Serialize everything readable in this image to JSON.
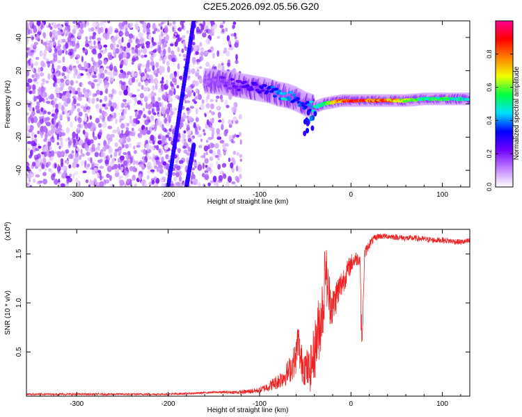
{
  "title": "C2E5.2026.092.05.56.G20",
  "colors": {
    "snr_line": "#ee2222",
    "axis": "#000000"
  },
  "chart_data": [
    {
      "type": "heatmap",
      "xlabel": "Height of straight line (km)",
      "ylabel": "Frequency (Hz)",
      "xlim": [
        -355,
        130
      ],
      "ylim": [
        -50,
        50
      ],
      "x_ticks": [
        "-300",
        "-200",
        "-100",
        "0",
        "100"
      ],
      "x_tick_values": [
        -300,
        -200,
        -100,
        0,
        100
      ],
      "y_ticks": [
        "-40",
        "-20",
        "0",
        "20",
        "40"
      ],
      "y_tick_values": [
        -40,
        -20,
        0,
        20,
        40
      ],
      "colorbar": {
        "label": "Normalized spectral amplitude",
        "range": [
          0,
          1
        ],
        "ticks": [
          "0.0",
          "0.2",
          "0.4",
          "0.6",
          "0.8"
        ],
        "tick_values": [
          0.0,
          0.2,
          0.4,
          0.6,
          0.8
        ],
        "colormap": [
          "#ffffff",
          "#c080ff",
          "#7000ff",
          "#0000ff",
          "#00e0ff",
          "#00ff40",
          "#f0ff00",
          "#ff8000",
          "#ff0000",
          "#ff0090"
        ]
      },
      "ridge": {
        "x": [
          -160,
          -140,
          -120,
          -100,
          -90,
          -80,
          -70,
          -60,
          -50,
          -40,
          -30,
          -20,
          -10,
          0,
          20,
          40,
          60,
          80,
          100,
          130
        ],
        "y": [
          14,
          13,
          11,
          9,
          8,
          6,
          5,
          3,
          0,
          -2,
          0,
          1,
          2,
          2,
          2,
          2,
          2,
          3,
          3,
          3
        ],
        "amplitude": [
          0.15,
          0.2,
          0.25,
          0.3,
          0.35,
          0.45,
          0.5,
          0.4,
          0.35,
          0.5,
          0.6,
          0.7,
          0.85,
          0.9,
          0.92,
          0.85,
          0.7,
          0.55,
          0.6,
          0.5
        ]
      },
      "diagonal_streaks": [
        {
          "x_start": -200,
          "x_end": -172,
          "y_start": -50,
          "y_end": 50
        },
        {
          "x_start": -180,
          "x_end": -172,
          "y_start": -50,
          "y_end": -25
        }
      ]
    },
    {
      "type": "line",
      "xlabel": "Height of straight line (km)",
      "ylabel": "SNR (10 * v/v)",
      "y_multiplier_label": "(x10",
      "y_multiplier_exp": "4",
      "xlim": [
        -355,
        130
      ],
      "ylim": [
        0.05,
        1.75
      ],
      "x_ticks": [
        "-300",
        "-200",
        "-100",
        "0",
        "100"
      ],
      "x_tick_values": [
        -300,
        -200,
        -100,
        0,
        100
      ],
      "y_ticks": [
        "0.5",
        "1.0",
        "1.5"
      ],
      "y_tick_values": [
        0.5,
        1.0,
        1.5
      ],
      "series": [
        {
          "x": [
            -355,
            -300,
            -250,
            -200,
            -170,
            -150,
            -120,
            -100,
            -90,
            -80,
            -70,
            -65,
            -60,
            -58,
            -55,
            -50,
            -45,
            -40,
            -35,
            -30,
            -28,
            -25,
            -20,
            -15,
            -10,
            -5,
            0,
            5,
            10,
            12,
            15,
            20,
            25,
            30,
            40,
            50,
            60,
            70,
            80,
            90,
            100,
            110,
            120,
            130
          ],
          "y": [
            0.07,
            0.07,
            0.07,
            0.07,
            0.08,
            0.09,
            0.09,
            0.11,
            0.15,
            0.2,
            0.28,
            0.35,
            0.45,
            0.65,
            0.4,
            0.35,
            0.3,
            0.5,
            0.75,
            1.0,
            1.4,
            1.1,
            0.95,
            1.1,
            1.2,
            1.3,
            1.4,
            1.45,
            1.45,
            0.6,
            1.5,
            1.6,
            1.65,
            1.68,
            1.68,
            1.67,
            1.66,
            1.66,
            1.65,
            1.64,
            1.64,
            1.63,
            1.62,
            1.63
          ],
          "noise": [
            0.01,
            0.01,
            0.01,
            0.01,
            0.01,
            0.01,
            0.02,
            0.03,
            0.05,
            0.08,
            0.12,
            0.15,
            0.18,
            0.2,
            0.2,
            0.2,
            0.22,
            0.3,
            0.35,
            0.35,
            0.3,
            0.3,
            0.2,
            0.18,
            0.15,
            0.12,
            0.1,
            0.08,
            0.06,
            0.0,
            0.06,
            0.05,
            0.04,
            0.03,
            0.03,
            0.03,
            0.03,
            0.03,
            0.03,
            0.03,
            0.03,
            0.03,
            0.03,
            0.03
          ]
        }
      ]
    }
  ]
}
